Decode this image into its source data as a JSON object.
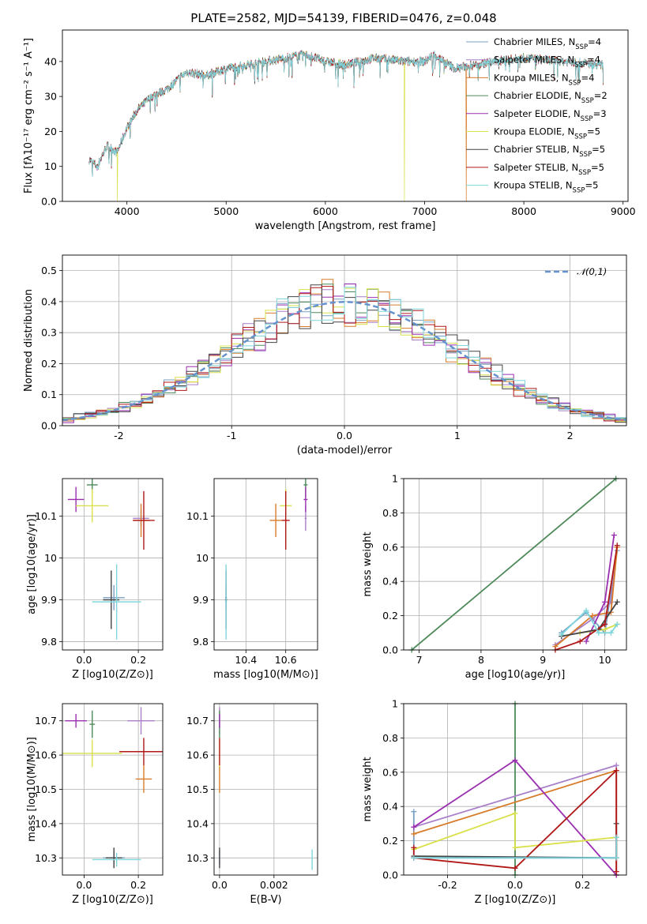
{
  "title": "PLATE=2582, MJD=54139, FIBERID=0476, z=0.048",
  "colors": [
    "#7aa0c4",
    "#a87fc8",
    "#d87c2a",
    "#4f8a5b",
    "#9a2fb0",
    "#d9e04a",
    "#444444",
    "#b01818",
    "#7ed6dc"
  ],
  "chart_data": [
    {
      "type": "line",
      "id": "spectrum",
      "xlabel": "wavelength [Angstrom, rest frame]",
      "ylabel": "Flux [fλ10⁻¹⁷ erg cm⁻² s⁻¹ A⁻¹]",
      "xlim": [
        3350,
        9050
      ],
      "ylim": [
        0,
        49
      ],
      "xticks": [
        4000,
        5000,
        6000,
        7000,
        8000,
        9000
      ],
      "yticks": [
        0,
        10,
        20,
        30,
        40
      ],
      "grid": false,
      "legend_position": "top-right",
      "continuum": [
        [
          3620,
          12
        ],
        [
          3700,
          10
        ],
        [
          3800,
          16
        ],
        [
          3900,
          14
        ],
        [
          4000,
          21
        ],
        [
          4100,
          26
        ],
        [
          4250,
          30
        ],
        [
          4400,
          32
        ],
        [
          4600,
          37
        ],
        [
          4800,
          36
        ],
        [
          5000,
          38
        ],
        [
          5200,
          39
        ],
        [
          5400,
          40
        ],
        [
          5600,
          41
        ],
        [
          5800,
          42
        ],
        [
          6000,
          40
        ],
        [
          6200,
          39
        ],
        [
          6500,
          41
        ],
        [
          6800,
          40
        ],
        [
          7000,
          40
        ],
        [
          7100,
          42
        ],
        [
          7300,
          38
        ],
        [
          7500,
          39
        ],
        [
          7700,
          40
        ],
        [
          8000,
          41
        ],
        [
          8400,
          40
        ],
        [
          8800,
          39
        ]
      ],
      "drops": [
        {
          "x": 3905,
          "y": 0,
          "series": "Kroupa ELODIE"
        },
        {
          "x": 6795,
          "y": 0,
          "series": "Kroupa ELODIE"
        },
        {
          "x": 7420,
          "y": 0,
          "series": "Kroupa MILES"
        }
      ],
      "series": [
        {
          "name": "Chabrier MILES",
          "nssp": "4"
        },
        {
          "name": "Salpeter MILES",
          "nssp": "4"
        },
        {
          "name": "Kroupa MILES",
          "nssp": "4"
        },
        {
          "name": "Chabrier ELODIE",
          "nssp": "2"
        },
        {
          "name": "Salpeter ELODIE",
          "nssp": "3"
        },
        {
          "name": "Kroupa ELODIE",
          "nssp": "5"
        },
        {
          "name": "Chabrier STELIB",
          "nssp": "5"
        },
        {
          "name": "Salpeter STELIB",
          "nssp": "5"
        },
        {
          "name": "Kroupa STELIB",
          "nssp": "5"
        }
      ]
    },
    {
      "type": "step",
      "id": "residuals",
      "xlabel": "(data-model)/error",
      "ylabel": "Normed distribution",
      "xlim": [
        -2.5,
        2.5
      ],
      "ylim": [
        0,
        0.55
      ],
      "xticks": [
        -2,
        -1,
        0,
        1,
        2
      ],
      "yticks": [
        0.0,
        0.1,
        0.2,
        0.3,
        0.4,
        0.5
      ],
      "grid": true,
      "bin_width": 0.1,
      "reference": {
        "name": "𝒩(0,1)",
        "mean": 0,
        "sigma": 1
      }
    },
    {
      "type": "errorbar",
      "id": "age-vs-Z",
      "xlabel": "Z [log10(Z/Z⊙)]",
      "ylabel": "age  [log10(age/yr)]",
      "xlim": [
        -0.08,
        0.29
      ],
      "ylim": [
        9.78,
        10.19
      ],
      "xticks": [
        0.0,
        0.2
      ],
      "yticks": [
        9.8,
        9.9,
        10.0,
        10.1
      ],
      "points": [
        {
          "s": 0,
          "x": 0.11,
          "y": 9.905,
          "dx": 0.04,
          "dy": 0.03
        },
        {
          "s": 1,
          "x": 0.21,
          "y": 10.095,
          "dx": 0.03,
          "dy": 0.02
        },
        {
          "s": 2,
          "x": 0.21,
          "y": 10.09,
          "dx": 0.03,
          "dy": 0.04
        },
        {
          "s": 3,
          "x": 0.03,
          "y": 10.175,
          "dx": 0.02,
          "dy": 0.02
        },
        {
          "s": 4,
          "x": -0.03,
          "y": 10.14,
          "dx": 0.03,
          "dy": 0.03
        },
        {
          "s": 5,
          "x": 0.03,
          "y": 10.125,
          "dx": 0.06,
          "dy": 0.04
        },
        {
          "s": 6,
          "x": 0.1,
          "y": 9.9,
          "dx": 0.03,
          "dy": 0.07
        },
        {
          "s": 7,
          "x": 0.22,
          "y": 10.09,
          "dx": 0.04,
          "dy": 0.07
        },
        {
          "s": 8,
          "x": 0.12,
          "y": 9.895,
          "dx": 0.09,
          "dy": 0.09
        }
      ]
    },
    {
      "type": "errorbar",
      "id": "age-vs-mass",
      "xlabel": "mass [log10(M/M⊙)]",
      "ylabel": "",
      "xlim": [
        10.24,
        10.76
      ],
      "ylim": [
        9.78,
        10.19
      ],
      "xticks": [
        10.4,
        10.6
      ],
      "yticks": [
        9.8,
        9.9,
        10.0,
        10.1
      ],
      "points": [
        {
          "s": 0,
          "x": 10.3,
          "y": 9.905,
          "dx": 0.005,
          "dy": 0.03
        },
        {
          "s": 1,
          "x": 10.7,
          "y": 10.095,
          "dx": 0.005,
          "dy": 0.03
        },
        {
          "s": 2,
          "x": 10.55,
          "y": 10.09,
          "dx": 0.03,
          "dy": 0.04
        },
        {
          "s": 3,
          "x": 10.7,
          "y": 10.175,
          "dx": 0.01,
          "dy": 0.03
        },
        {
          "s": 4,
          "x": 10.7,
          "y": 10.14,
          "dx": 0.01,
          "dy": 0.03
        },
        {
          "s": 5,
          "x": 10.6,
          "y": 10.125,
          "dx": 0.03,
          "dy": 0.04
        },
        {
          "s": 6,
          "x": 10.3,
          "y": 9.9,
          "dx": 0.005,
          "dy": 0.07
        },
        {
          "s": 7,
          "x": 10.6,
          "y": 10.09,
          "dx": 0.02,
          "dy": 0.07
        },
        {
          "s": 8,
          "x": 10.3,
          "y": 9.895,
          "dx": 0.005,
          "dy": 0.09
        }
      ]
    },
    {
      "type": "line",
      "id": "massweight-vs-age",
      "xlabel": "age  [log10(age/yr)]",
      "ylabel": "mass weight",
      "xlim": [
        6.75,
        10.35
      ],
      "ylim": [
        0,
        1.0
      ],
      "xticks": [
        7,
        8,
        9,
        10
      ],
      "yticks": [
        0.0,
        0.2,
        0.4,
        0.6,
        0.8,
        1.0
      ],
      "series": [
        {
          "s": 3,
          "points": [
            [
              6.88,
              0.0
            ],
            [
              10.18,
              1.0
            ]
          ]
        },
        {
          "s": 0,
          "points": [
            [
              9.3,
              0.1
            ],
            [
              9.7,
              0.22
            ],
            [
              10.0,
              0.1
            ],
            [
              10.2,
              0.58
            ]
          ]
        },
        {
          "s": 1,
          "points": [
            [
              9.2,
              0.03
            ],
            [
              9.8,
              0.18
            ],
            [
              10.1,
              0.28
            ],
            [
              10.2,
              0.6
            ]
          ]
        },
        {
          "s": 2,
          "points": [
            [
              9.2,
              0.02
            ],
            [
              9.8,
              0.2
            ],
            [
              10.1,
              0.22
            ],
            [
              10.2,
              0.6
            ]
          ]
        },
        {
          "s": 4,
          "points": [
            [
              9.7,
              0.05
            ],
            [
              10.0,
              0.28
            ],
            [
              10.15,
              0.67
            ]
          ]
        },
        {
          "s": 5,
          "points": [
            [
              9.6,
              0.1
            ],
            [
              10.0,
              0.12
            ],
            [
              10.2,
              0.15
            ]
          ]
        },
        {
          "s": 6,
          "points": [
            [
              9.3,
              0.08
            ],
            [
              9.9,
              0.12
            ],
            [
              10.2,
              0.28
            ]
          ]
        },
        {
          "s": 7,
          "points": [
            [
              9.2,
              0.0
            ],
            [
              9.6,
              0.05
            ],
            [
              10.0,
              0.15
            ],
            [
              10.2,
              0.61
            ]
          ]
        },
        {
          "s": 8,
          "points": [
            [
              9.3,
              0.09
            ],
            [
              9.7,
              0.23
            ],
            [
              9.9,
              0.1
            ],
            [
              10.1,
              0.1
            ],
            [
              10.2,
              0.15
            ]
          ]
        }
      ]
    },
    {
      "type": "errorbar",
      "id": "mass-vs-Z",
      "xlabel": "Z [log10(Z/Z⊙)]",
      "ylabel": "mass [log10(M/M⊙)]",
      "xlim": [
        -0.08,
        0.29
      ],
      "ylim": [
        10.25,
        10.75
      ],
      "xticks": [
        0.0,
        0.2
      ],
      "yticks": [
        10.3,
        10.4,
        10.5,
        10.6,
        10.7
      ],
      "points": [
        {
          "s": 0,
          "x": 0.11,
          "y": 10.3,
          "dx": 0.04,
          "dy": 0.02
        },
        {
          "s": 1,
          "x": 0.21,
          "y": 10.7,
          "dx": 0.05,
          "dy": 0.04
        },
        {
          "s": 2,
          "x": 0.22,
          "y": 10.53,
          "dx": 0.03,
          "dy": 0.04
        },
        {
          "s": 3,
          "x": 0.03,
          "y": 10.69,
          "dx": 0.01,
          "dy": 0.04
        },
        {
          "s": 4,
          "x": -0.03,
          "y": 10.7,
          "dx": 0.04,
          "dy": 0.02
        },
        {
          "s": 5,
          "x": 0.03,
          "y": 10.605,
          "dx": 0.11,
          "dy": 0.04
        },
        {
          "s": 6,
          "x": 0.11,
          "y": 10.3,
          "dx": 0.03,
          "dy": 0.03
        },
        {
          "s": 7,
          "x": 0.22,
          "y": 10.61,
          "dx": 0.09,
          "dy": 0.04
        },
        {
          "s": 8,
          "x": 0.12,
          "y": 10.295,
          "dx": 0.09,
          "dy": 0.02
        }
      ]
    },
    {
      "type": "errorbar",
      "id": "mass-vs-EBV",
      "xlabel": "E(B-V)",
      "ylabel": "",
      "xlim": [
        -0.0002,
        0.0036
      ],
      "ylim": [
        10.25,
        10.75
      ],
      "xticks": [
        0.0,
        0.002
      ],
      "yticks": [
        10.3,
        10.4,
        10.5,
        10.6,
        10.7
      ],
      "points": [
        {
          "s": 0,
          "x": 0.0,
          "y": 10.3,
          "dx": 0,
          "dy": 0.02
        },
        {
          "s": 1,
          "x": 0.0,
          "y": 10.7,
          "dx": 0,
          "dy": 0.04
        },
        {
          "s": 2,
          "x": 0.0,
          "y": 10.53,
          "dx": 0,
          "dy": 0.04
        },
        {
          "s": 3,
          "x": 0.0,
          "y": 10.69,
          "dx": 0,
          "dy": 0.04
        },
        {
          "s": 4,
          "x": 0.0,
          "y": 10.7,
          "dx": 0,
          "dy": 0.02
        },
        {
          "s": 5,
          "x": 0.0,
          "y": 10.605,
          "dx": 0,
          "dy": 0.04
        },
        {
          "s": 6,
          "x": 0.0,
          "y": 10.3,
          "dx": 0,
          "dy": 0.03
        },
        {
          "s": 7,
          "x": 0.0,
          "y": 10.61,
          "dx": 0,
          "dy": 0.04
        },
        {
          "s": 8,
          "x": 0.0034,
          "y": 10.295,
          "dx": 0,
          "dy": 0.03
        }
      ]
    },
    {
      "type": "line",
      "id": "massweight-vs-Z",
      "xlabel": "Z [log10(Z/Z⊙)]",
      "ylabel": "mass weight",
      "xlim": [
        -0.33,
        0.33
      ],
      "ylim": [
        0,
        1.0
      ],
      "xticks": [
        -0.2,
        0.0,
        0.2
      ],
      "yticks": [
        0.0,
        0.2,
        0.4,
        0.6,
        0.8,
        1.0
      ],
      "series": [
        {
          "s": 3,
          "points": [
            [
              0.0,
              0.0
            ],
            [
              0.0,
              1.0
            ]
          ]
        },
        {
          "s": 0,
          "points": [
            [
              -0.3,
              0.37
            ],
            [
              -0.3,
              0.1
            ],
            [
              0.3,
              0.1
            ],
            [
              0.3,
              0.22
            ]
          ]
        },
        {
          "s": 1,
          "points": [
            [
              -0.3,
              0.28
            ],
            [
              0.3,
              0.64
            ],
            [
              0.3,
              0.0
            ]
          ]
        },
        {
          "s": 2,
          "points": [
            [
              -0.3,
              0.24
            ],
            [
              0.3,
              0.61
            ],
            [
              0.3,
              0.0
            ]
          ]
        },
        {
          "s": 4,
          "points": [
            [
              -0.3,
              0.28
            ],
            [
              0.0,
              0.67
            ],
            [
              0.3,
              0.0
            ]
          ]
        },
        {
          "s": 5,
          "points": [
            [
              -0.3,
              0.15
            ],
            [
              0.0,
              0.36
            ],
            [
              0.0,
              0.16
            ],
            [
              0.3,
              0.22
            ]
          ]
        },
        {
          "s": 6,
          "points": [
            [
              -0.3,
              0.11
            ],
            [
              0.3,
              0.1
            ],
            [
              0.3,
              0.3
            ]
          ]
        },
        {
          "s": 7,
          "points": [
            [
              -0.3,
              0.16
            ],
            [
              -0.3,
              0.1
            ],
            [
              0.0,
              0.04
            ],
            [
              0.3,
              0.61
            ],
            [
              0.3,
              0.02
            ]
          ]
        },
        {
          "s": 8,
          "points": [
            [
              -0.3,
              0.1
            ],
            [
              0.3,
              0.1
            ],
            [
              0.3,
              0.22
            ]
          ]
        }
      ]
    }
  ]
}
